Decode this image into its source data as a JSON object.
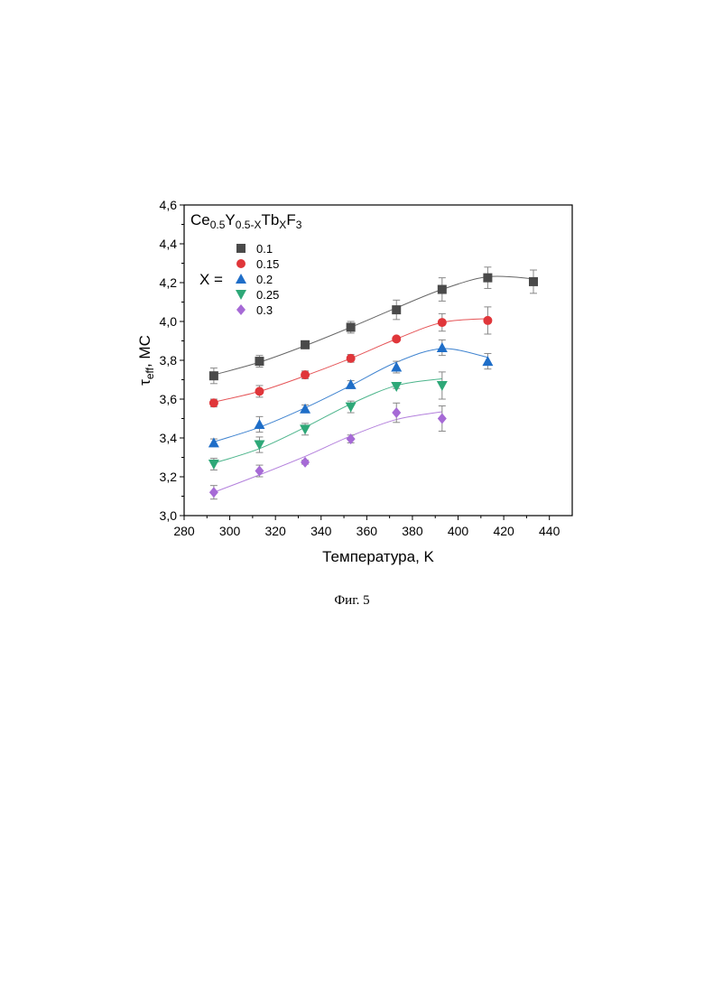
{
  "chart_data": {
    "type": "scatter",
    "formula_label": "Ce0.5Y0.5-XTbXF3",
    "x_eq_label": "X =",
    "xlabel": "Температура, K",
    "ylabel": "τeff, МС",
    "ylabel_main": "τ",
    "ylabel_sub": "eff",
    "ylabel_rest": ", МС",
    "xlim": [
      280,
      450
    ],
    "ylim": [
      3.0,
      4.6
    ],
    "xticks": [
      "280",
      "300",
      "320",
      "340",
      "360",
      "380",
      "400",
      "420",
      "440"
    ],
    "yticks": [
      "3,0",
      "3,2",
      "3,4",
      "3,6",
      "3,8",
      "4,0",
      "4,2",
      "4,4",
      "4,6"
    ],
    "grid": false,
    "legend_position": "top-left",
    "series": [
      {
        "name": "0.1",
        "marker": "square",
        "color": "#4a4a4a",
        "x": [
          293,
          313,
          333,
          353,
          373,
          393,
          413,
          433
        ],
        "y": [
          3.72,
          3.795,
          3.88,
          3.97,
          4.06,
          4.165,
          4.225,
          4.205
        ],
        "err": [
          0.04,
          0.03,
          0.02,
          0.03,
          0.05,
          0.06,
          0.055,
          0.06
        ],
        "fit_x": [
          293,
          313,
          333,
          353,
          373,
          393,
          413,
          433
        ],
        "fit_y": [
          3.725,
          3.79,
          3.875,
          3.97,
          4.07,
          4.165,
          4.23,
          4.22
        ]
      },
      {
        "name": "0.15",
        "marker": "circle",
        "color": "#e0363a",
        "x": [
          293,
          313,
          333,
          353,
          373,
          393,
          413
        ],
        "y": [
          3.58,
          3.64,
          3.725,
          3.81,
          3.91,
          3.995,
          4.005
        ],
        "err": [
          0.02,
          0.03,
          0.02,
          0.02,
          0.01,
          0.045,
          0.07
        ],
        "fit_x": [
          293,
          313,
          333,
          353,
          373,
          393,
          413
        ],
        "fit_y": [
          3.585,
          3.64,
          3.72,
          3.81,
          3.91,
          3.995,
          4.015
        ]
      },
      {
        "name": "0.2",
        "marker": "triangle-up",
        "color": "#1f6ec8",
        "x": [
          293,
          313,
          333,
          353,
          373,
          393,
          413
        ],
        "y": [
          3.375,
          3.47,
          3.55,
          3.675,
          3.765,
          3.865,
          3.795
        ],
        "err": [
          0.02,
          0.04,
          0.02,
          0.02,
          0.03,
          0.04,
          0.04
        ],
        "fit_x": [
          293,
          313,
          333,
          353,
          373,
          393,
          413
        ],
        "fit_y": [
          3.38,
          3.455,
          3.555,
          3.67,
          3.79,
          3.86,
          3.815
        ]
      },
      {
        "name": "0.25",
        "marker": "triangle-down",
        "color": "#2ea878",
        "x": [
          293,
          313,
          333,
          353,
          373,
          393
        ],
        "y": [
          3.265,
          3.365,
          3.445,
          3.56,
          3.665,
          3.67
        ],
        "err": [
          0.03,
          0.04,
          0.03,
          0.03,
          0.01,
          0.07
        ],
        "fit_x": [
          293,
          313,
          333,
          353,
          373,
          393
        ],
        "fit_y": [
          3.27,
          3.345,
          3.455,
          3.575,
          3.67,
          3.705
        ]
      },
      {
        "name": "0.3",
        "marker": "diamond",
        "color": "#a66ad6",
        "x": [
          293,
          313,
          333,
          353,
          373,
          393
        ],
        "y": [
          3.12,
          3.23,
          3.275,
          3.395,
          3.53,
          3.5
        ],
        "err": [
          0.035,
          0.03,
          0.01,
          0.02,
          0.05,
          0.065
        ],
        "fit_x": [
          293,
          313,
          333,
          353,
          373,
          393
        ],
        "fit_y": [
          3.12,
          3.21,
          3.305,
          3.41,
          3.495,
          3.535
        ]
      }
    ]
  },
  "caption": "Фиг. 5"
}
